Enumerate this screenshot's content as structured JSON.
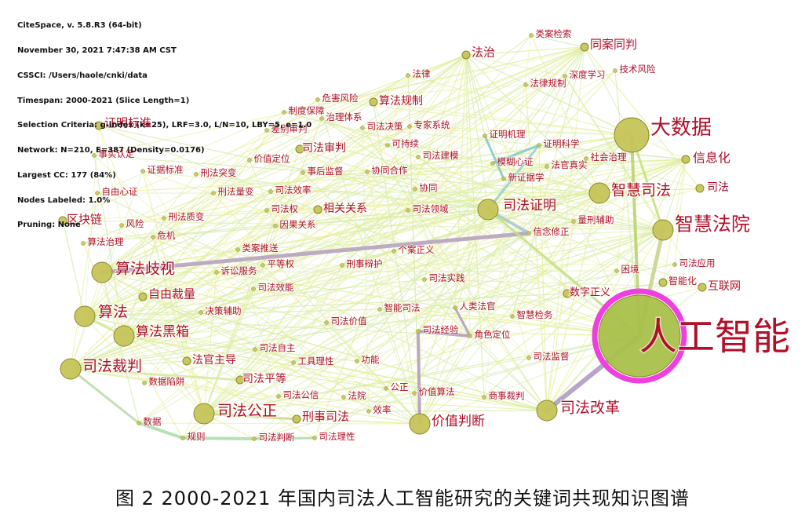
{
  "header": [
    "CiteSpace, v. 5.8.R3 (64-bit)",
    "November 30, 2021 7:47:38 AM CST",
    "CSSCI: /Users/haole/cnki/data",
    "Timespan: 2000-2021 (Slice Length=1)",
    "Selection Criteria: g-index (k=25), LRF=3.0, L/N=10, LBY=5, e=1.0",
    "Network: N=210, E=387 (Density=0.0176)",
    "Largest CC: 177 (84%)",
    "Nodes Labeled: 1.0%",
    "Pruning: None"
  ],
  "caption": "图 2   2000-2021 年国内司法人工智能研究的关键词共现知识图谱",
  "colors": {
    "label": "#b0102a",
    "node": "#c6c45a",
    "node_edge": "#8a8a2a",
    "halo": "#ee3fe0"
  },
  "nodes": [
    {
      "id": "ai",
      "label": "人工智能",
      "size": "xl"
    },
    {
      "id": "bigdata",
      "label": "大数据",
      "size": "l"
    },
    {
      "id": "smartcourt",
      "label": "智慧法院",
      "size": "m"
    },
    {
      "id": "smartjustice",
      "label": "智慧司法",
      "size": "m"
    },
    {
      "id": "judreform",
      "label": "司法改革",
      "size": "m"
    },
    {
      "id": "algdisc",
      "label": "算法歧视",
      "size": "m"
    },
    {
      "id": "alg",
      "label": "算法",
      "size": "m"
    },
    {
      "id": "blackbox",
      "label": "算法黑箱",
      "size": "m"
    },
    {
      "id": "judadj",
      "label": "司法裁判",
      "size": "m"
    },
    {
      "id": "fairness",
      "label": "司法公正",
      "size": "m"
    },
    {
      "id": "valuejudg",
      "label": "价值判断",
      "size": "m"
    },
    {
      "id": "judproof",
      "label": "司法证明",
      "size": "m"
    },
    {
      "id": "infoization",
      "label": "信息化",
      "size": "s"
    },
    {
      "id": "samecase",
      "label": "同案同判",
      "size": "s"
    },
    {
      "id": "rulelaw",
      "label": "法治",
      "size": "s"
    },
    {
      "id": "proofstd",
      "label": "证明标准",
      "size": "s"
    },
    {
      "id": "blockchain",
      "label": "区块链",
      "size": "s"
    },
    {
      "id": "freedisc",
      "label": "自由裁量",
      "size": "s"
    },
    {
      "id": "criminal",
      "label": "刑事司法",
      "size": "s"
    },
    {
      "id": "judicial",
      "label": "司法",
      "size": "s"
    },
    {
      "id": "internet",
      "label": "互联网",
      "size": "s"
    },
    {
      "id": "digitalgov",
      "label": "数字正义",
      "size": "s"
    },
    {
      "id": "smartization",
      "label": "智能化",
      "size": "s"
    },
    {
      "id": "algreg",
      "label": "算法规制",
      "size": "s"
    },
    {
      "id": "relrel",
      "label": "相关关系",
      "size": "s"
    },
    {
      "id": "judtrial",
      "label": "司法审判",
      "size": "s"
    },
    {
      "id": "judequal",
      "label": "司法平等",
      "size": "s"
    },
    {
      "id": "judge",
      "label": "法官主导",
      "size": "s"
    },
    {
      "id": "law",
      "label": "法律",
      "size": "xs"
    },
    {
      "id": "casesearch",
      "label": "类案检索",
      "size": "xs"
    },
    {
      "id": "techrisk",
      "label": "技术风险",
      "size": "xs"
    },
    {
      "id": "deeplearn",
      "label": "深度学习",
      "size": "xs"
    },
    {
      "id": "lawreg",
      "label": "法律规制",
      "size": "xs"
    },
    {
      "id": "danger",
      "label": "危害风险",
      "size": "xs"
    },
    {
      "id": "system",
      "label": "制度保障",
      "size": "xs"
    },
    {
      "id": "govsys",
      "label": "治理体系",
      "size": "xs"
    },
    {
      "id": "diffrev",
      "label": "差别审判",
      "size": "xs"
    },
    {
      "id": "decision",
      "label": "司法决策",
      "size": "xs"
    },
    {
      "id": "expert",
      "label": "专家系统",
      "size": "xs"
    },
    {
      "id": "sustain",
      "label": "可持续",
      "size": "xs"
    },
    {
      "id": "judmodel",
      "label": "司法建模",
      "size": "xs"
    },
    {
      "id": "valpos",
      "label": "价值定位",
      "size": "xs"
    },
    {
      "id": "postsup",
      "label": "事后监督",
      "size": "xs"
    },
    {
      "id": "coop",
      "label": "协同合作",
      "size": "xs"
    },
    {
      "id": "facttest",
      "label": "事实认定",
      "size": "xs"
    },
    {
      "id": "evistd",
      "label": "证据标准",
      "size": "xs"
    },
    {
      "id": "criminalmut",
      "label": "刑法突变",
      "size": "xs"
    },
    {
      "id": "freemind",
      "label": "自由心证",
      "size": "xs"
    },
    {
      "id": "lawqty",
      "label": "刑法量变",
      "size": "xs"
    },
    {
      "id": "judeff",
      "label": "司法效率",
      "size": "xs"
    },
    {
      "id": "together",
      "label": "协同",
      "size": "xs"
    },
    {
      "id": "judpower",
      "label": "司法权",
      "size": "xs"
    },
    {
      "id": "judfield",
      "label": "司法领域",
      "size": "xs"
    },
    {
      "id": "risk",
      "label": "风险",
      "size": "xs"
    },
    {
      "id": "lawqual",
      "label": "刑法质变",
      "size": "xs"
    },
    {
      "id": "causal",
      "label": "因果关系",
      "size": "xs"
    },
    {
      "id": "proofmech",
      "label": "证明机理",
      "size": "xs"
    },
    {
      "id": "proofsci",
      "label": "证明科学",
      "size": "xs"
    },
    {
      "id": "socgov",
      "label": "社会治理",
      "size": "xs"
    },
    {
      "id": "fuzzy",
      "label": "模糊心证",
      "size": "xs"
    },
    {
      "id": "judgetruth",
      "label": "法官真实",
      "size": "xs"
    },
    {
      "id": "newevi",
      "label": "新证据学",
      "size": "xs"
    },
    {
      "id": "sentaux",
      "label": "量刑辅助",
      "size": "xs"
    },
    {
      "id": "beliefmod",
      "label": "信念修正",
      "size": "xs"
    },
    {
      "id": "algmgmt",
      "label": "算法治理",
      "size": "xs"
    },
    {
      "id": "crisis",
      "label": "危机",
      "size": "xs"
    },
    {
      "id": "recommend",
      "label": "类案推送",
      "size": "xs"
    },
    {
      "id": "indjust",
      "label": "个案正义",
      "size": "xs"
    },
    {
      "id": "equalrt",
      "label": "平等权",
      "size": "xs"
    },
    {
      "id": "defense",
      "label": "刑事辩护",
      "size": "xs"
    },
    {
      "id": "litserv",
      "label": "诉讼服务",
      "size": "xs"
    },
    {
      "id": "judprac",
      "label": "司法实践",
      "size": "xs"
    },
    {
      "id": "judapp",
      "label": "司法应用",
      "size": "xs"
    },
    {
      "id": "dilemma",
      "label": "困境",
      "size": "xs"
    },
    {
      "id": "judeffi",
      "label": "司法效能",
      "size": "xs"
    },
    {
      "id": "smartjud",
      "label": "智能司法",
      "size": "xs"
    },
    {
      "id": "humanjudge",
      "label": "人类法官",
      "size": "xs"
    },
    {
      "id": "decaux",
      "label": "决策辅助",
      "size": "xs"
    },
    {
      "id": "judvalue",
      "label": "司法价值",
      "size": "xs"
    },
    {
      "id": "smartpros",
      "label": "智慧检务",
      "size": "xs"
    },
    {
      "id": "judexp",
      "label": "司法经验",
      "size": "xs"
    },
    {
      "id": "rolepos",
      "label": "角色定位",
      "size": "xs"
    },
    {
      "id": "judauto",
      "label": "司法自主",
      "size": "xs"
    },
    {
      "id": "toolrat",
      "label": "工具理性",
      "size": "xs"
    },
    {
      "id": "function",
      "label": "功能",
      "size": "xs"
    },
    {
      "id": "judsup",
      "label": "司法监督",
      "size": "xs"
    },
    {
      "id": "datatrap",
      "label": "数据陷阱",
      "size": "xs"
    },
    {
      "id": "judpub",
      "label": "司法公信",
      "size": "xs"
    },
    {
      "id": "court",
      "label": "法院",
      "size": "xs"
    },
    {
      "id": "justice",
      "label": "公正",
      "size": "xs"
    },
    {
      "id": "valalg",
      "label": "价值算法",
      "size": "xs"
    },
    {
      "id": "commtrial",
      "label": "商事裁判",
      "size": "xs"
    },
    {
      "id": "efficiency",
      "label": "效率",
      "size": "xs"
    },
    {
      "id": "data",
      "label": "数据",
      "size": "xs"
    },
    {
      "id": "rules",
      "label": "规则",
      "size": "xs"
    },
    {
      "id": "judjudg",
      "label": "司法判断",
      "size": "xs"
    },
    {
      "id": "judrat",
      "label": "司法理性",
      "size": "xs"
    }
  ]
}
